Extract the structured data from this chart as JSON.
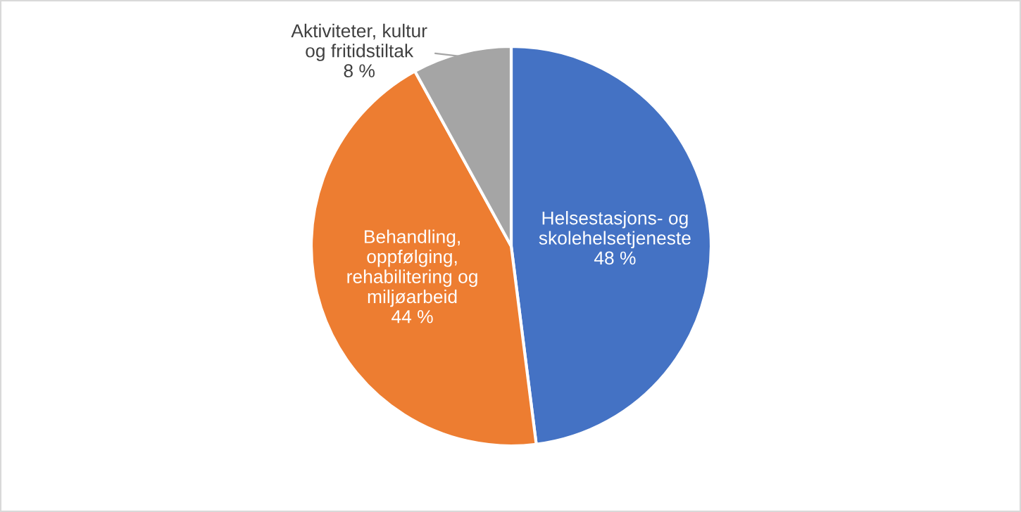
{
  "chart_data": {
    "type": "pie",
    "categories": [
      "Helsestasjons- og\nskolehelsetjeneste",
      "Behandling,\noppfølging,\nrehabilitering og\nmiljøarbeid",
      "Aktiviteter, kultur\nog fritidstiltak"
    ],
    "values": [
      48,
      44,
      8
    ],
    "colors": [
      "#4472c4",
      "#ed7d31",
      "#a5a5a5"
    ],
    "value_labels": [
      "48 %",
      "44 %",
      "8 %"
    ],
    "legend": false
  }
}
